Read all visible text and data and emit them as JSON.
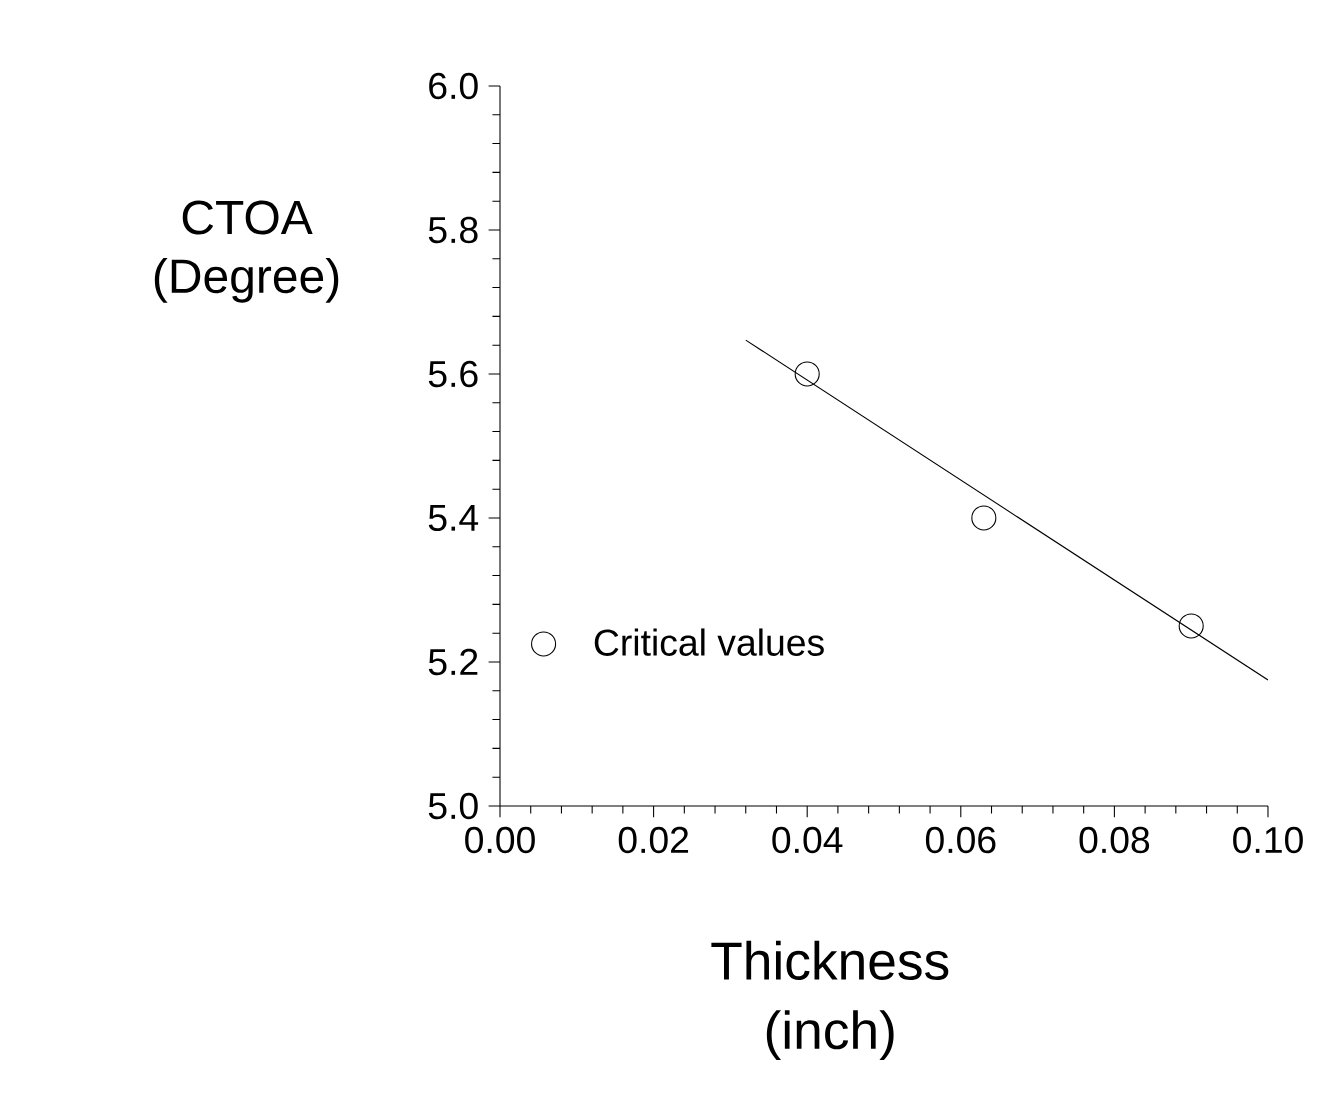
{
  "chart_data": {
    "type": "scatter",
    "xlabel": "Thickness (inch)",
    "ylabel": "CTOA (Degree)",
    "series": [
      {
        "name": "Critical values",
        "color": "#000000",
        "marker": "circle",
        "x": [
          0.04,
          0.063,
          0.09
        ],
        "values": [
          5.6,
          5.4,
          5.25
        ]
      },
      {
        "type": "line",
        "color": "#000000",
        "marker": "none",
        "x": [
          0.032,
          0.1
        ],
        "values": [
          5.647,
          5.175
        ]
      }
    ],
    "xlim": [
      0,
      0.1
    ],
    "ylim": [
      5.0,
      6.0
    ],
    "xticks": [
      {
        "value": 0,
        "label": "0.00"
      },
      {
        "value": 0.02,
        "label": "0.02"
      },
      {
        "value": 0.04,
        "label": "0.04"
      },
      {
        "value": 0.06,
        "label": "0.06"
      },
      {
        "value": 0.08,
        "label": "0.08"
      },
      {
        "value": 0.1,
        "label": "0.10"
      }
    ],
    "yticks": [
      {
        "value": 5.0,
        "label": "5.0"
      },
      {
        "value": 5.2,
        "label": "5.2"
      },
      {
        "value": 5.4,
        "label": "5.4"
      },
      {
        "value": 5.6,
        "label": "5.6"
      },
      {
        "value": 5.8,
        "label": "5.8"
      },
      {
        "value": 6.0,
        "label": "6.0"
      }
    ],
    "legend": "bottom left",
    "grid": false
  }
}
